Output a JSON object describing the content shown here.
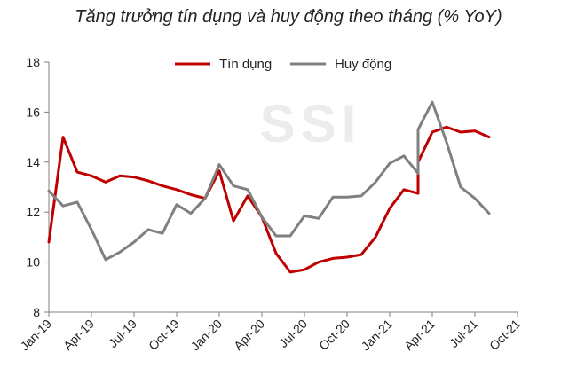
{
  "chart_data": {
    "type": "line",
    "title": "Tăng trưởng tín dụng và huy động theo tháng (% YoY)",
    "watermark": "SSI",
    "x": [
      "Jan-19",
      "Feb-19",
      "Mar-19",
      "Apr-19",
      "May-19",
      "Jun-19",
      "Jul-19",
      "Aug-19",
      "Sep-19",
      "Oct-19",
      "Nov-19",
      "Dec-19",
      "Jan-20",
      "Feb-20",
      "Mar-20",
      "Apr-20",
      "May-20",
      "Jun-20",
      "Jul-20",
      "Aug-20",
      "Sep-20",
      "Oct-20",
      "Nov-20",
      "Dec-20",
      "Jan-21",
      "Feb-21",
      "Mar-21",
      "Apr-21",
      "May-21",
      "Jun-21",
      "Jul-21",
      "Aug-21",
      "Sep-21",
      "Oct-21"
    ],
    "x_tick_labels": [
      "Jan-19",
      "Apr-19",
      "Jul-19",
      "Oct-19",
      "Jan-20",
      "Apr-20",
      "Jul-20",
      "Oct-20",
      "Jan-21",
      "Apr-21",
      "Jul-21",
      "Oct-21"
    ],
    "ylim": [
      8,
      18
    ],
    "y_ticks": [
      8,
      10,
      12,
      14,
      16,
      18
    ],
    "legend_position": "top-center",
    "grid": false,
    "series": [
      {
        "name": "Tín dụng",
        "color": "#c00000",
        "points": [
          {
            "x": "Jan-19",
            "y": 10.8
          },
          {
            "x": "Feb-19",
            "y": 15.0
          },
          {
            "x": "Mar-19",
            "y": 13.6
          },
          {
            "x": "Apr-19",
            "y": 13.45
          },
          {
            "x": "May-19",
            "y": 13.2
          },
          {
            "x": "Jun-19",
            "y": 13.45
          },
          {
            "x": "Jul-19",
            "y": 13.4
          },
          {
            "x": "Aug-19",
            "y": 13.25
          },
          {
            "x": "Sep-19",
            "y": 13.05
          },
          {
            "x": "Oct-19",
            "y": 12.9
          },
          {
            "x": "Nov-19",
            "y": 12.7
          },
          {
            "x": "Dec-19",
            "y": 12.55
          },
          {
            "x": "Jan-20",
            "y": 13.65
          },
          {
            "x": "Feb-20",
            "y": 11.65
          },
          {
            "x": "Mar-20",
            "y": 12.65
          },
          {
            "x": "Apr-20",
            "y": 11.8
          },
          {
            "x": "May-20",
            "y": 10.35
          },
          {
            "x": "Jun-20",
            "y": 9.6
          },
          {
            "x": "Jul-20",
            "y": 9.7
          },
          {
            "x": "Aug-20",
            "y": 10.0
          },
          {
            "x": "Sep-20",
            "y": 10.15
          },
          {
            "x": "Oct-20",
            "y": 10.2
          },
          {
            "x": "Nov-20",
            "y": 10.3
          },
          {
            "x": "Dec-20",
            "y": 11.0
          },
          {
            "x": "Jan-21",
            "y": 12.15
          },
          {
            "x": "Feb-21",
            "y": 12.9
          },
          {
            "x": "Mar-21",
            "y": 12.75
          },
          {
            "x": "Mar-21",
            "y": 14.0
          },
          {
            "x": "Apr-21",
            "y": 15.2
          },
          {
            "x": "May-21",
            "y": 15.4
          },
          {
            "x": "Jun-21",
            "y": 15.2
          },
          {
            "x": "Jul-21",
            "y": 15.25
          },
          {
            "x": "Aug-21",
            "y": 15.0
          }
        ]
      },
      {
        "name": "Huy động",
        "color": "#808080",
        "points": [
          {
            "x": "Jan-19",
            "y": 12.85
          },
          {
            "x": "Feb-19",
            "y": 12.25
          },
          {
            "x": "Mar-19",
            "y": 12.4
          },
          {
            "x": "Apr-19",
            "y": 11.3
          },
          {
            "x": "May-19",
            "y": 10.1
          },
          {
            "x": "Jun-19",
            "y": 10.4
          },
          {
            "x": "Jul-19",
            "y": 10.8
          },
          {
            "x": "Aug-19",
            "y": 11.3
          },
          {
            "x": "Sep-19",
            "y": 11.15
          },
          {
            "x": "Oct-19",
            "y": 12.3
          },
          {
            "x": "Nov-19",
            "y": 11.95
          },
          {
            "x": "Dec-19",
            "y": 12.55
          },
          {
            "x": "Jan-20",
            "y": 13.9
          },
          {
            "x": "Feb-20",
            "y": 13.05
          },
          {
            "x": "Mar-20",
            "y": 12.9
          },
          {
            "x": "Apr-20",
            "y": 11.8
          },
          {
            "x": "May-20",
            "y": 11.05
          },
          {
            "x": "Jun-20",
            "y": 11.05
          },
          {
            "x": "Jul-20",
            "y": 11.85
          },
          {
            "x": "Aug-20",
            "y": 11.75
          },
          {
            "x": "Sep-20",
            "y": 12.6
          },
          {
            "x": "Oct-20",
            "y": 12.6
          },
          {
            "x": "Nov-20",
            "y": 12.65
          },
          {
            "x": "Dec-20",
            "y": 13.2
          },
          {
            "x": "Jan-21",
            "y": 13.95
          },
          {
            "x": "Feb-21",
            "y": 14.25
          },
          {
            "x": "Mar-21",
            "y": 13.55
          },
          {
            "x": "Mar-21",
            "y": 15.3
          },
          {
            "x": "Apr-21",
            "y": 16.4
          },
          {
            "x": "May-21",
            "y": 14.8
          },
          {
            "x": "Jun-21",
            "y": 13.0
          },
          {
            "x": "Jul-21",
            "y": 12.55
          },
          {
            "x": "Aug-21",
            "y": 11.95
          }
        ]
      }
    ]
  }
}
